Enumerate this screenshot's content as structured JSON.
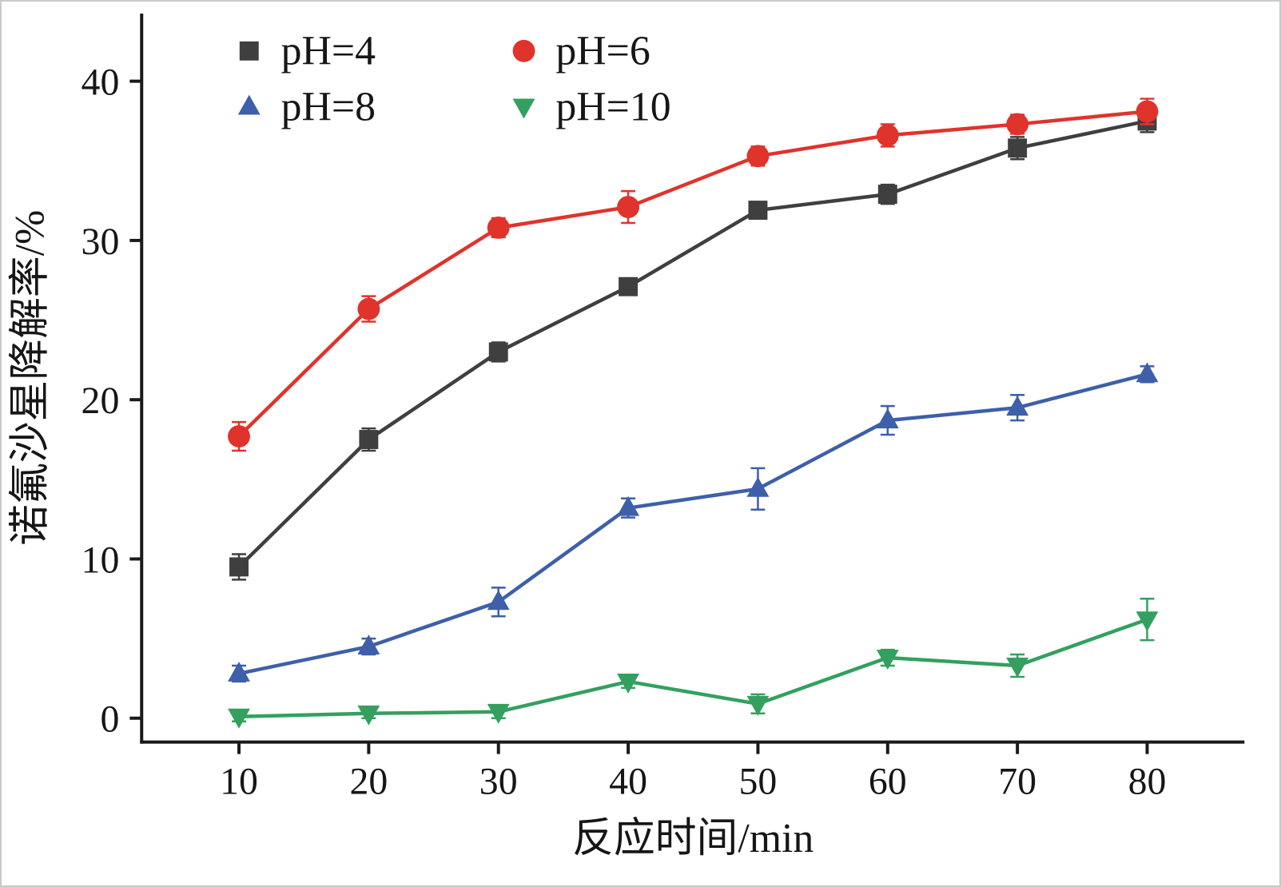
{
  "chart_data": {
    "type": "line",
    "title": "",
    "xlabel": "反应时间/min",
    "ylabel": "诺氟沙星降解率/%",
    "x": [
      10,
      20,
      30,
      40,
      50,
      60,
      70,
      80
    ],
    "xticks": [
      10,
      20,
      30,
      40,
      50,
      60,
      70,
      80
    ],
    "yticks": [
      0,
      10,
      20,
      30,
      40
    ],
    "xlim": [
      2.5,
      87.5
    ],
    "ylim": [
      -1.5,
      44.25
    ],
    "grid": false,
    "legend_position": "top-left",
    "axis_color": "#1a1a1a",
    "series": [
      {
        "name": "pH=4",
        "marker": "square",
        "color": "#3f3f3f",
        "values": [
          9.5,
          17.5,
          23.0,
          27.1,
          31.9,
          32.9,
          35.8,
          37.5
        ],
        "errors": [
          0.8,
          0.7,
          0.6,
          0.5,
          0.5,
          0.6,
          0.7,
          0.7
        ]
      },
      {
        "name": "pH=6",
        "marker": "circle",
        "color": "#e0332c",
        "values": [
          17.7,
          25.7,
          30.8,
          32.1,
          35.3,
          36.6,
          37.3,
          38.1
        ],
        "errors": [
          0.9,
          0.8,
          0.6,
          1.0,
          0.6,
          0.7,
          0.6,
          0.8
        ]
      },
      {
        "name": "pH=8",
        "marker": "triangle-up",
        "color": "#3e5fa9",
        "values": [
          2.8,
          4.5,
          7.3,
          13.2,
          14.4,
          18.7,
          19.5,
          21.6
        ],
        "errors": [
          0.5,
          0.5,
          0.9,
          0.6,
          1.3,
          0.9,
          0.8,
          0.5
        ]
      },
      {
        "name": "pH=10",
        "marker": "triangle-down",
        "color": "#33a05f",
        "values": [
          0.1,
          0.3,
          0.4,
          2.3,
          0.9,
          3.8,
          3.3,
          6.2
        ],
        "errors": [
          0.3,
          0.3,
          0.4,
          0.4,
          0.6,
          0.5,
          0.7,
          1.3
        ]
      }
    ]
  }
}
